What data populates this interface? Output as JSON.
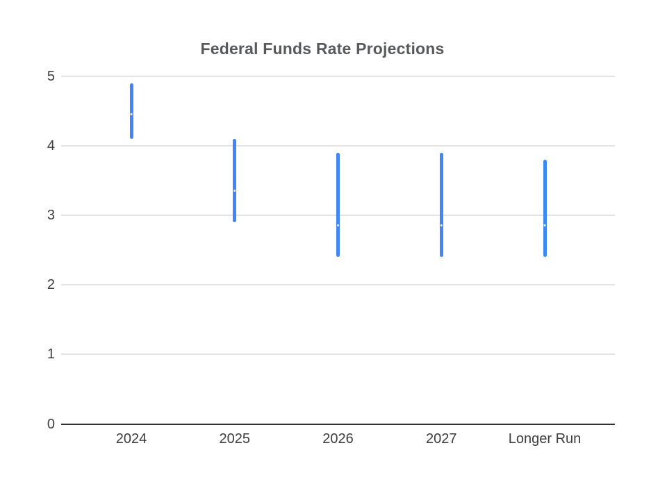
{
  "chart_data": {
    "type": "candlestick",
    "title": "Federal Funds Rate Projections",
    "categories": [
      "2024",
      "2025",
      "2026",
      "2027",
      "Longer Run"
    ],
    "points": [
      {
        "category": "2024",
        "whisker_low": 4.1,
        "box_low": 4.4,
        "box_high": 4.6,
        "whisker_high": 4.9,
        "median": 4.4,
        "label": "4.4"
      },
      {
        "category": "2025",
        "whisker_low": 2.9,
        "box_low": 3.1,
        "box_high": 3.6,
        "whisker_high": 4.1,
        "median": 3.4,
        "label": "3.4"
      },
      {
        "category": "2026",
        "whisker_low": 2.4,
        "box_low": 2.6,
        "box_high": 3.6,
        "whisker_high": 3.9,
        "median": 2.9,
        "label": "2.9"
      },
      {
        "category": "2027",
        "whisker_low": 2.4,
        "box_low": 2.6,
        "box_high": 3.6,
        "whisker_high": 3.9,
        "median": 2.9,
        "label": "2.9"
      },
      {
        "category": "Longer Run",
        "whisker_low": 2.4,
        "box_low": 2.5,
        "box_high": 3.5,
        "whisker_high": 3.8,
        "median": 2.9,
        "label": "2.9"
      }
    ],
    "yticks": [
      "0",
      "1",
      "2",
      "3",
      "4",
      "5"
    ],
    "ylim": [
      0,
      5
    ],
    "xlabel": "",
    "ylabel": "",
    "grid": true,
    "legend": "none"
  },
  "colors": {
    "candle_fill": "#4285f4",
    "candle_label_text": "#ffffff",
    "gridline": "#e3e3e3",
    "axis_baseline": "#333333",
    "title_text": "#58595b",
    "tick_label_text": "#3d3d3d",
    "background": "#ffffff"
  }
}
